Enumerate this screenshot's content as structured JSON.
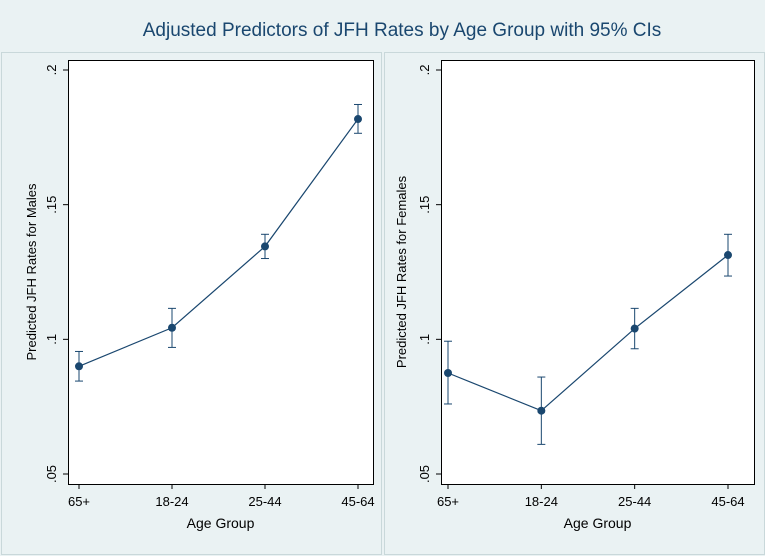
{
  "title": "Adjusted Predictors of JFH Rates by Age Group with 95% CIs",
  "chart_data": [
    {
      "type": "line",
      "xlabel": "Age Group",
      "ylabel": "Predicted JFH Rates for Males",
      "categories": [
        "65+",
        "18-24",
        "25-44",
        "45-64"
      ],
      "values": [
        0.09,
        0.1043,
        0.1345,
        0.1818
      ],
      "ci_low": [
        0.0845,
        0.097,
        0.13,
        0.1765
      ],
      "ci_high": [
        0.0955,
        0.1115,
        0.139,
        0.1872
      ],
      "ylim": [
        0.05,
        0.2
      ],
      "yticks": [
        0.05,
        0.1,
        0.15,
        0.2
      ],
      "ytick_labels": [
        ".05",
        ".1",
        ".15",
        ".2"
      ]
    },
    {
      "type": "line",
      "xlabel": "Age Group",
      "ylabel": "Predicted JFH Rates for Females",
      "categories": [
        "65+",
        "18-24",
        "25-44",
        "45-64"
      ],
      "values": [
        0.0875,
        0.0735,
        0.104,
        0.1313
      ],
      "ci_low": [
        0.076,
        0.061,
        0.0965,
        0.1235
      ],
      "ci_high": [
        0.0993,
        0.086,
        0.1115,
        0.139
      ],
      "ylim": [
        0.05,
        0.2
      ],
      "yticks": [
        0.05,
        0.1,
        0.15,
        0.2
      ],
      "ytick_labels": [
        ".05",
        ".1",
        ".15",
        ".2"
      ]
    }
  ],
  "colors": {
    "background": "#eaf2f3",
    "plot_background": "#ffffff",
    "series": "#1a476f",
    "title": "#1a476f",
    "text": "#000000"
  }
}
